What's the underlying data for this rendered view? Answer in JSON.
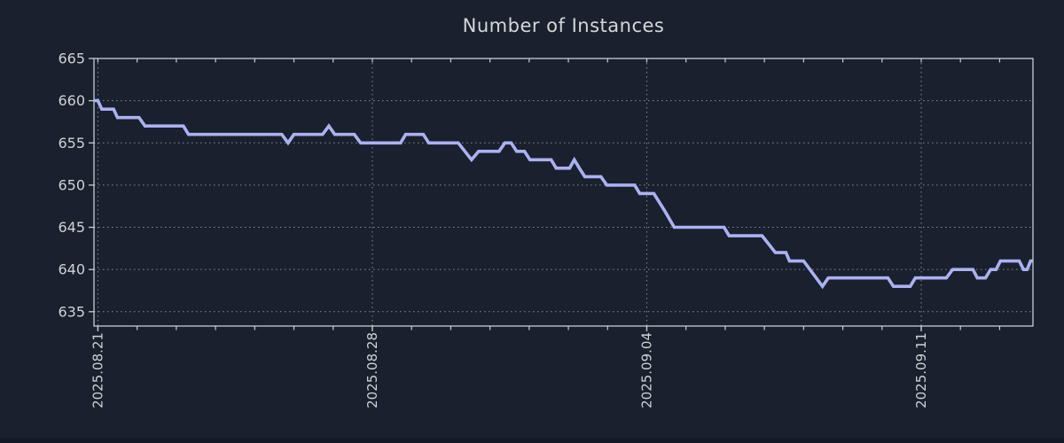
{
  "chart_data": {
    "type": "line",
    "title": "Number of Instances",
    "x_axis": {
      "tick_labels": [
        "2025.08.21",
        "2025.08.28",
        "2025.09.04",
        "2025.09.11"
      ],
      "tick_days": [
        0,
        7,
        14,
        21
      ],
      "minor_tick_interval_days": 1,
      "minor_tick_count": 24,
      "xlim_days": [
        -0.1,
        23.85
      ],
      "labels_rotated_degrees": -90,
      "grid": true
    },
    "y_axis": {
      "tick_labels": [
        "665",
        "660",
        "655",
        "650",
        "645",
        "640",
        "635"
      ],
      "tick_values": [
        665,
        660,
        655,
        650,
        645,
        640,
        635
      ],
      "ylim": [
        633.3,
        665
      ],
      "grid": true
    },
    "series": [
      {
        "name": "instances",
        "points": [
          [
            -0.1,
            660
          ],
          [
            0.0,
            660
          ],
          [
            0.1,
            659
          ],
          [
            0.4,
            659
          ],
          [
            0.5,
            658
          ],
          [
            1.05,
            658
          ],
          [
            1.2,
            657
          ],
          [
            2.18,
            657
          ],
          [
            2.31,
            656
          ],
          [
            4.69,
            656
          ],
          [
            4.85,
            655
          ],
          [
            5.0,
            656
          ],
          [
            5.73,
            656
          ],
          [
            5.89,
            657
          ],
          [
            6.04,
            656
          ],
          [
            6.54,
            656
          ],
          [
            6.7,
            655
          ],
          [
            7.72,
            655
          ],
          [
            7.85,
            656
          ],
          [
            8.3,
            656
          ],
          [
            8.44,
            655
          ],
          [
            9.19,
            655
          ],
          [
            9.53,
            653
          ],
          [
            9.71,
            654
          ],
          [
            10.23,
            654
          ],
          [
            10.38,
            655
          ],
          [
            10.54,
            655
          ],
          [
            10.68,
            654
          ],
          [
            10.88,
            654
          ],
          [
            11.02,
            653
          ],
          [
            11.56,
            653
          ],
          [
            11.69,
            652
          ],
          [
            12.03,
            652
          ],
          [
            12.15,
            653
          ],
          [
            12.28,
            652
          ],
          [
            12.42,
            651
          ],
          [
            12.83,
            651
          ],
          [
            12.98,
            650
          ],
          [
            13.69,
            650
          ],
          [
            13.82,
            649
          ],
          [
            14.18,
            649
          ],
          [
            14.45,
            647
          ],
          [
            14.7,
            645
          ],
          [
            15.97,
            645
          ],
          [
            16.1,
            644
          ],
          [
            16.94,
            644
          ],
          [
            17.28,
            642
          ],
          [
            17.55,
            642
          ],
          [
            17.64,
            641
          ],
          [
            18.0,
            641
          ],
          [
            18.48,
            638
          ],
          [
            18.63,
            639
          ],
          [
            20.15,
            639
          ],
          [
            20.29,
            638
          ],
          [
            20.72,
            638
          ],
          [
            20.85,
            639
          ],
          [
            21.64,
            639
          ],
          [
            21.8,
            640
          ],
          [
            22.32,
            640
          ],
          [
            22.43,
            639
          ],
          [
            22.64,
            639
          ],
          [
            22.77,
            640
          ],
          [
            22.91,
            640
          ],
          [
            23.02,
            641
          ],
          [
            23.5,
            641
          ],
          [
            23.61,
            640
          ],
          [
            23.7,
            640
          ],
          [
            23.79,
            641
          ],
          [
            23.84,
            641
          ]
        ]
      }
    ],
    "legend": "none",
    "colors": {
      "background": "#1a202d",
      "line": "#abb1f0",
      "axis": "#c7cdd4",
      "grid": "#9aa0a8",
      "text": "#cfd2d6",
      "title_text": "#d4d7da"
    }
  }
}
